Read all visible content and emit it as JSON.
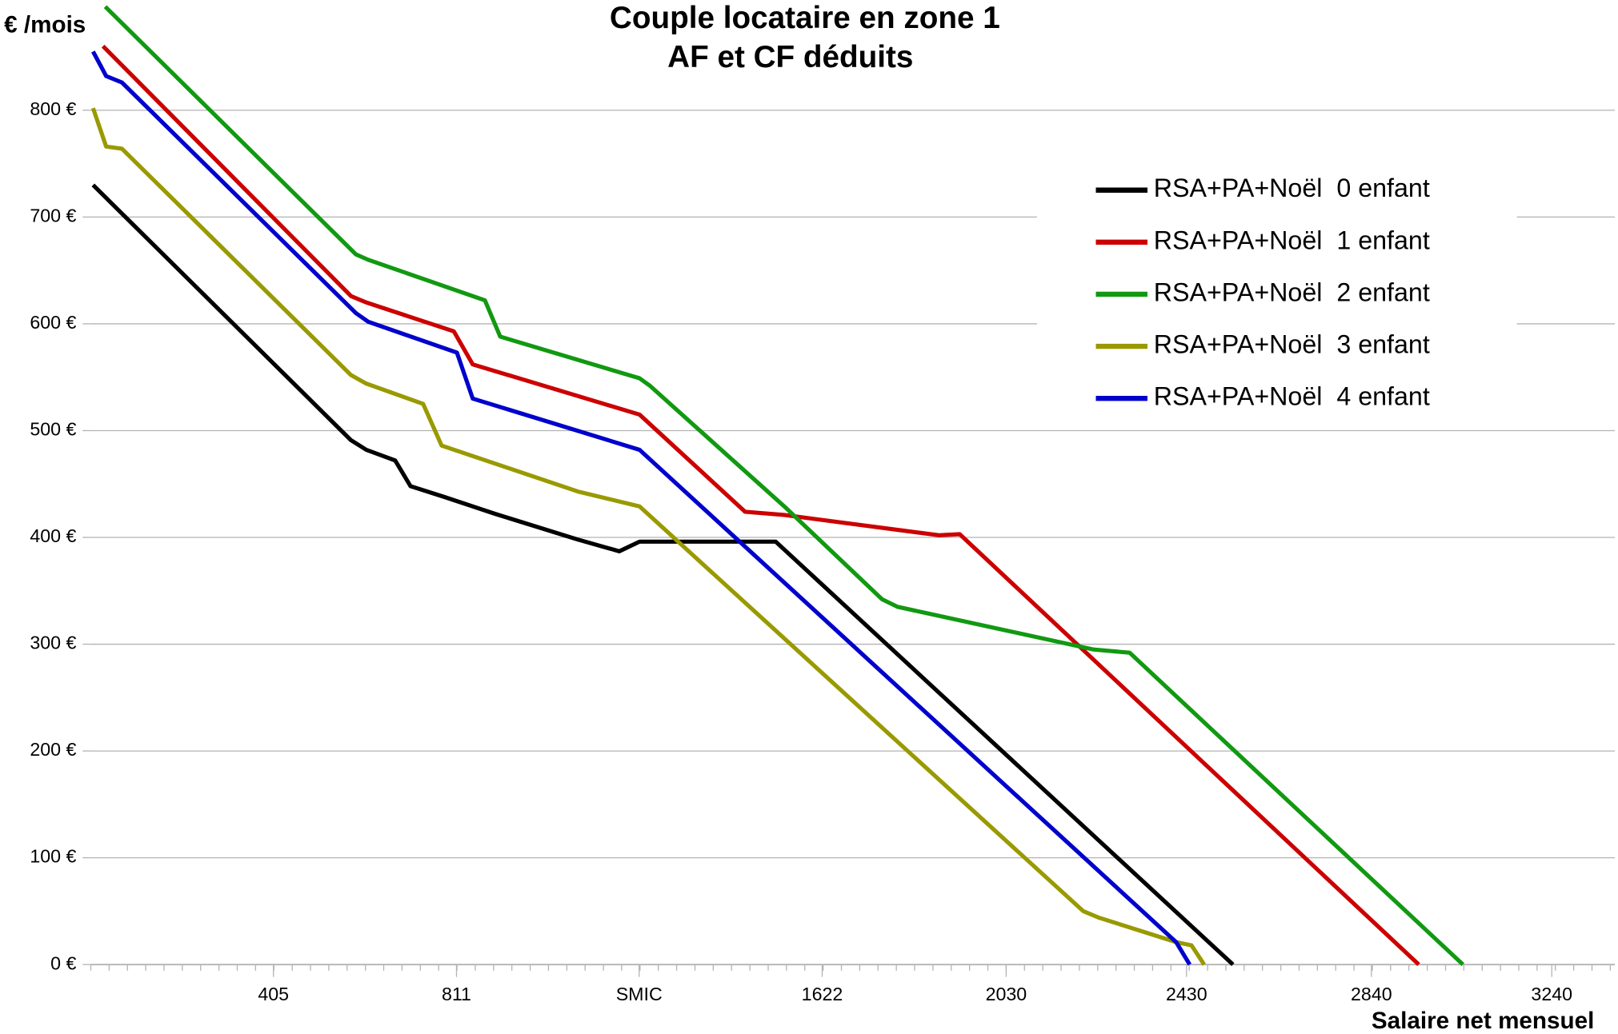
{
  "chart_data": {
    "type": "line",
    "title": "Couple locataire en zone 1",
    "subtitle": "AF et CF déduits",
    "y_label": "€ /mois",
    "x_label": "Salaire net mensuel",
    "xlim": [
      0,
      3380
    ],
    "ylim": [
      0,
      900
    ],
    "xticks": [
      405,
      811,
      {
        "value": 1216,
        "label": "SMIC"
      },
      1622,
      2030,
      2430,
      2840,
      3240
    ],
    "yticks": [
      {
        "value": 0,
        "label": "0 €"
      },
      {
        "value": 100,
        "label": "100 €"
      },
      {
        "value": 200,
        "label": "200 €"
      },
      {
        "value": 300,
        "label": "300 €"
      },
      {
        "value": 400,
        "label": "400 €"
      },
      {
        "value": 500,
        "label": "500 €"
      },
      {
        "value": 600,
        "label": "600 €"
      },
      {
        "value": 700,
        "label": "700 €"
      },
      {
        "value": 800,
        "label": "800 €"
      }
    ],
    "grid": true,
    "legend": "right",
    "series": [
      {
        "name": "RSA+PA+Noël  0 enfant",
        "color": "#000000",
        "x": [
          5,
          577,
          611,
          675,
          709,
          783,
          897,
          1080,
          1172,
          1217,
          1519,
          2533
        ],
        "values": [
          730,
          491,
          482,
          472,
          448,
          438,
          422,
          398,
          387,
          396,
          396,
          0
        ]
      },
      {
        "name": "RSA+PA+Noël  1 enfant",
        "color": "#cc0000",
        "x": [
          27,
          577,
          611,
          805,
          847,
          1217,
          1451,
          1538,
          1881,
          1927,
          2945
        ],
        "values": [
          860,
          626,
          620,
          593,
          562,
          515,
          424,
          421,
          402,
          403,
          0
        ]
      },
      {
        "name": "RSA+PA+Noël  2 enfant",
        "color": "#119911",
        "x": [
          32,
          588,
          615,
          874,
          908,
          1217,
          1240,
          1538,
          1755,
          1789,
          2224,
          2304,
          3043
        ],
        "values": [
          897,
          665,
          660,
          622,
          588,
          549,
          542,
          429,
          342,
          335,
          295,
          292,
          0
        ]
      },
      {
        "name": "RSA+PA+Noël  3 enfant",
        "color": "#999900",
        "x": [
          5,
          34,
          69,
          577,
          611,
          737,
          778,
          1080,
          1217,
          2201,
          2235,
          2407,
          2441,
          2469
        ],
        "values": [
          802,
          766,
          764,
          552,
          544,
          525,
          486,
          443,
          429,
          50,
          44,
          21,
          18,
          0
        ]
      },
      {
        "name": "RSA+PA+Noël  4 enfant",
        "color": "#0000cc",
        "x": [
          5,
          34,
          69,
          588,
          615,
          812,
          847,
          1217,
          2407,
          2437
        ],
        "values": [
          855,
          832,
          826,
          610,
          602,
          573,
          530,
          482,
          21,
          0
        ]
      }
    ]
  }
}
